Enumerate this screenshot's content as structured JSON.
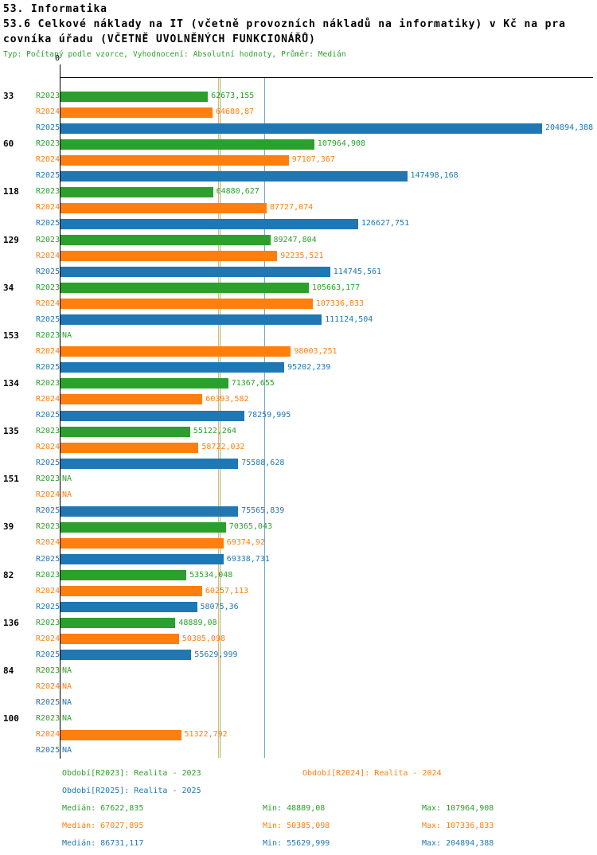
{
  "title": {
    "line1": "53. Informatika",
    "line2": "53.6 Celkové náklady na IT (včetně provozních nákladů na informatiky) v Kč na pra",
    "line3": "covníka úřadu (VČETNĚ UVOLNĚNÝCH FUNKCIONÁŘŮ)",
    "meta": "Typ: Počítaný podle vzorce, Vyhodnocení: Absolutní hodnoty, Průměr: Medián"
  },
  "legend": {
    "r2023": "Období[R2023]: Realita - 2023",
    "r2024": "Období[R2024]: Realita - 2024",
    "r2025": "Období[R2025]: Realita - 2025"
  },
  "stats": {
    "r2023": {
      "median": "Medián: 67622,835",
      "min": "Min: 48889,08",
      "max": "Max: 107964,908"
    },
    "r2024": {
      "median": "Medián: 67027,895",
      "min": "Min: 50385,098",
      "max": "Max: 107336,833"
    },
    "r2025": {
      "median": "Medián: 86731,117",
      "min": "Min: 55629,999",
      "max": "Max: 204894,388"
    }
  },
  "chart_data": {
    "type": "bar",
    "orientation": "horizontal",
    "title": "53.6 Celkové náklady na IT (včetně provozních nákladů na informatiky) v Kč na pracovníka úřadu (VČETNĚ UVOLNĚNÝCH FUNKCIONÁŘŮ)",
    "axis": {
      "origin_label": "0",
      "max": 204894.388
    },
    "grid": "median-lines-only",
    "legend_position": "bottom",
    "series_colors": {
      "R2023": "#2ca02c",
      "R2024": "#ff7f0e",
      "R2025": "#1f77b4"
    },
    "medians": {
      "R2023": 67622.835,
      "R2024": 67027.895,
      "R2025": 86731.117
    },
    "groups": [
      {
        "label": "33",
        "bars": [
          {
            "series": "R2023",
            "value": 62673.155,
            "display": "62673,155"
          },
          {
            "series": "R2024",
            "value": 64680.87,
            "display": "64680,87"
          },
          {
            "series": "R2025",
            "value": 204894.388,
            "display": "204894,388"
          }
        ]
      },
      {
        "label": "60",
        "bars": [
          {
            "series": "R2023",
            "value": 107964.908,
            "display": "107964,908"
          },
          {
            "series": "R2024",
            "value": 97107.367,
            "display": "97107,367"
          },
          {
            "series": "R2025",
            "value": 147498.168,
            "display": "147498,168"
          }
        ]
      },
      {
        "label": "118",
        "bars": [
          {
            "series": "R2023",
            "value": 64880.627,
            "display": "64880,627"
          },
          {
            "series": "R2024",
            "value": 87727.074,
            "display": "87727,074"
          },
          {
            "series": "R2025",
            "value": 126627.751,
            "display": "126627,751"
          }
        ]
      },
      {
        "label": "129",
        "bars": [
          {
            "series": "R2023",
            "value": 89247.804,
            "display": "89247,804"
          },
          {
            "series": "R2024",
            "value": 92235.521,
            "display": "92235,521"
          },
          {
            "series": "R2025",
            "value": 114745.561,
            "display": "114745,561"
          }
        ]
      },
      {
        "label": "34",
        "bars": [
          {
            "series": "R2023",
            "value": 105663.177,
            "display": "105663,177"
          },
          {
            "series": "R2024",
            "value": 107336.833,
            "display": "107336,833"
          },
          {
            "series": "R2025",
            "value": 111124.504,
            "display": "111124,504"
          }
        ]
      },
      {
        "label": "153",
        "bars": [
          {
            "series": "R2023",
            "value": null,
            "display": "NA"
          },
          {
            "series": "R2024",
            "value": 98003.251,
            "display": "98003,251"
          },
          {
            "series": "R2025",
            "value": 95202.239,
            "display": "95202,239"
          }
        ]
      },
      {
        "label": "134",
        "bars": [
          {
            "series": "R2023",
            "value": 71367.655,
            "display": "71367,655"
          },
          {
            "series": "R2024",
            "value": 60393.582,
            "display": "60393,582"
          },
          {
            "series": "R2025",
            "value": 78259.995,
            "display": "78259,995"
          }
        ]
      },
      {
        "label": "135",
        "bars": [
          {
            "series": "R2023",
            "value": 55122.264,
            "display": "55122,264"
          },
          {
            "series": "R2024",
            "value": 58722.032,
            "display": "58722,032"
          },
          {
            "series": "R2025",
            "value": 75588.628,
            "display": "75588,628"
          }
        ]
      },
      {
        "label": "151",
        "bars": [
          {
            "series": "R2023",
            "value": null,
            "display": "NA"
          },
          {
            "series": "R2024",
            "value": null,
            "display": "NA"
          },
          {
            "series": "R2025",
            "value": 75565.839,
            "display": "75565,839"
          }
        ]
      },
      {
        "label": "39",
        "bars": [
          {
            "series": "R2023",
            "value": 70365.043,
            "display": "70365,043"
          },
          {
            "series": "R2024",
            "value": 69374.92,
            "display": "69374,92"
          },
          {
            "series": "R2025",
            "value": 69338.731,
            "display": "69338,731"
          }
        ]
      },
      {
        "label": "82",
        "bars": [
          {
            "series": "R2023",
            "value": 53534.048,
            "display": "53534,048"
          },
          {
            "series": "R2024",
            "value": 60257.113,
            "display": "60257,113"
          },
          {
            "series": "R2025",
            "value": 58075.36,
            "display": "58075,36"
          }
        ]
      },
      {
        "label": "136",
        "bars": [
          {
            "series": "R2023",
            "value": 48889.08,
            "display": "48889,08"
          },
          {
            "series": "R2024",
            "value": 50385.098,
            "display": "50385,098"
          },
          {
            "series": "R2025",
            "value": 55629.999,
            "display": "55629,999"
          }
        ]
      },
      {
        "label": "84",
        "bars": [
          {
            "series": "R2023",
            "value": null,
            "display": "NA"
          },
          {
            "series": "R2024",
            "value": null,
            "display": "NA"
          },
          {
            "series": "R2025",
            "value": null,
            "display": "NA"
          }
        ]
      },
      {
        "label": "100",
        "bars": [
          {
            "series": "R2023",
            "value": null,
            "display": "NA"
          },
          {
            "series": "R2024",
            "value": 51322.792,
            "display": "51322,792"
          },
          {
            "series": "R2025",
            "value": null,
            "display": "NA"
          }
        ]
      }
    ]
  }
}
